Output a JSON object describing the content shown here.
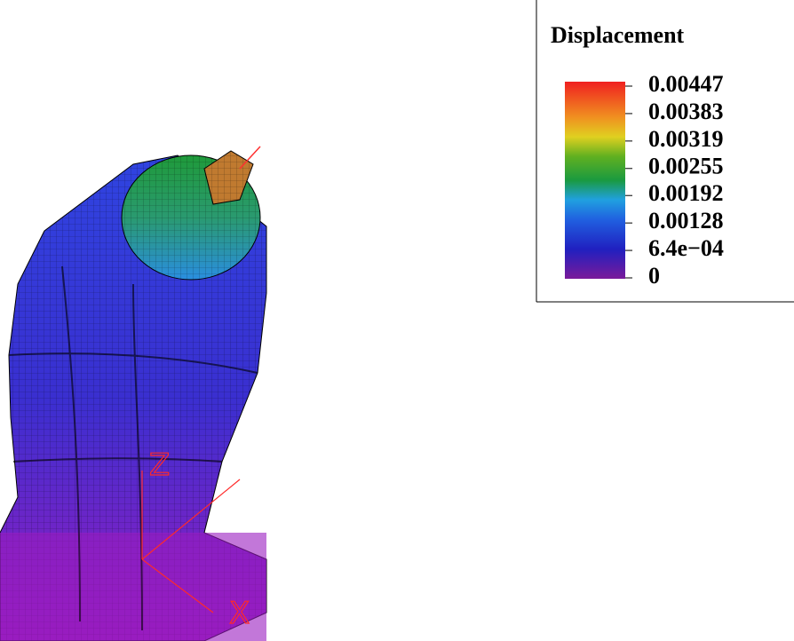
{
  "legend": {
    "title": "Displacement",
    "ticks": [
      0.00447,
      0.00383,
      0.00319,
      0.00255,
      0.00192,
      0.00128,
      {
        "value": 0.00064,
        "label": "6.4e−04"
      },
      0
    ],
    "range": [
      0,
      0.00447
    ]
  },
  "axes": {
    "z": "Z",
    "x": "X"
  }
}
